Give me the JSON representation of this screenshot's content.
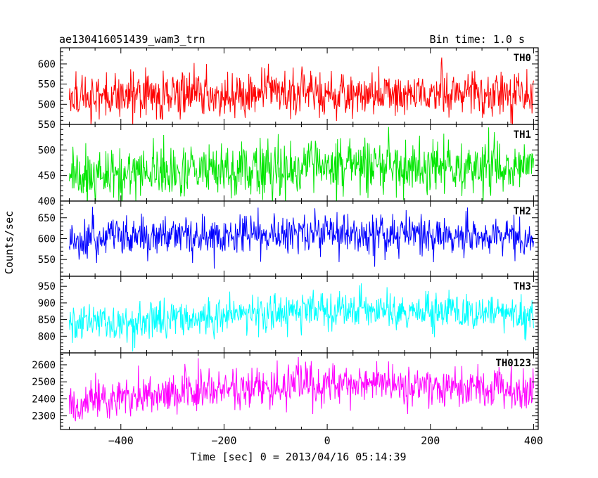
{
  "header": {
    "title": "ae130416051439_wam3_trn",
    "bin_time": "Bin time: 1.0 s"
  },
  "axes": {
    "ylabel": "Counts/sec",
    "xlabel": "Time [sec] 0 = 2013/04/16 05:14:39",
    "x_ticks": [
      "−400",
      "−200",
      "0",
      "200",
      "400"
    ]
  },
  "chart_data": [
    {
      "type": "line",
      "series": [
        {
          "name": "TH0",
          "mean": 520,
          "spread": 35,
          "color": "#ff0000"
        }
      ],
      "x": [
        -500,
        400
      ],
      "ylim": [
        450,
        640
      ],
      "yticks": [
        500,
        550,
        600
      ],
      "ytick_labels": [
        "500",
        "550",
        "600"
      ],
      "trend": [
        520,
        528,
        523
      ]
    },
    {
      "type": "line",
      "series": [
        {
          "name": "TH1",
          "mean": 460,
          "spread": 32,
          "color": "#00e600"
        }
      ],
      "x": [
        -500,
        400
      ],
      "ylim": [
        400,
        550
      ],
      "yticks": [
        400,
        450,
        500,
        550
      ],
      "ytick_labels": [
        "400",
        "450",
        "500",
        "550"
      ],
      "trend": [
        450,
        465,
        465
      ]
    },
    {
      "type": "line",
      "series": [
        {
          "name": "TH2",
          "mean": 605,
          "spread": 30,
          "color": "#0000ff"
        }
      ],
      "x": [
        -500,
        400
      ],
      "ylim": [
        510,
        690
      ],
      "yticks": [
        550,
        600,
        650
      ],
      "ytick_labels": [
        "550",
        "600",
        "650"
      ],
      "trend": [
        600,
        610,
        605
      ]
    },
    {
      "type": "line",
      "series": [
        {
          "name": "TH3",
          "mean": 860,
          "spread": 35,
          "color": "#00ffff"
        }
      ],
      "x": [
        -500,
        400
      ],
      "ylim": [
        750,
        980
      ],
      "yticks": [
        800,
        850,
        900,
        950
      ],
      "ytick_labels": [
        "800",
        "850",
        "900",
        "950"
      ],
      "trend": [
        830,
        875,
        865
      ]
    },
    {
      "type": "line",
      "series": [
        {
          "name": "TH0123",
          "mean": 2450,
          "spread": 75,
          "color": "#ff00ff"
        }
      ],
      "x": [
        -500,
        400
      ],
      "ylim": [
        2220,
        2670
      ],
      "yticks": [
        2300,
        2400,
        2500,
        2600
      ],
      "ytick_labels": [
        "2300",
        "2400",
        "2500",
        "2600"
      ],
      "trend": [
        2380,
        2490,
        2450
      ]
    }
  ]
}
